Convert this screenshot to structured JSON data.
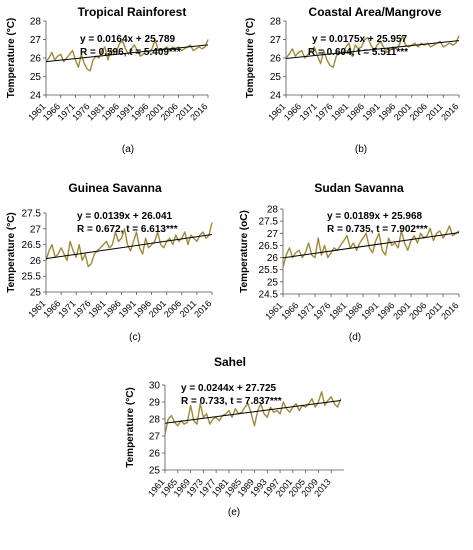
{
  "chart_data": [
    {
      "type": "line",
      "title": "Tropical Rainforest",
      "ylabel": "Temperature (°C)",
      "xlabel": "",
      "panel_label": "(a)",
      "equation": "y = 0.0164x + 25.789",
      "stats": "R = 0.596, t = 5.409***",
      "ylim": [
        24,
        28
      ],
      "yticks": [
        "24",
        "25",
        "26",
        "27",
        "28"
      ],
      "xlim": [
        1961,
        2016
      ],
      "xticks": [
        "1961",
        "1966",
        "1971",
        "1976",
        "1981",
        "1986",
        "1991",
        "1996",
        "2001",
        "2006",
        "2011",
        "2016"
      ],
      "trend": {
        "slope": 0.0164,
        "intercept": 25.789
      },
      "grid": false,
      "series": [
        {
          "color": "#a08a3a",
          "x": [
            1961,
            1962,
            1963,
            1964,
            1965,
            1966,
            1967,
            1968,
            1969,
            1970,
            1971,
            1972,
            1973,
            1974,
            1975,
            1976,
            1977,
            1978,
            1979,
            1980,
            1981,
            1982,
            1983,
            1984,
            1985,
            1986,
            1987,
            1988,
            1989,
            1990,
            1991,
            1992,
            1993,
            1994,
            1995,
            1996,
            1997,
            1998,
            1999,
            2000,
            2001,
            2002,
            2003,
            2004,
            2005,
            2006,
            2007,
            2008,
            2009,
            2010,
            2011,
            2012,
            2013,
            2014,
            2015,
            2016
          ],
          "values": [
            25.8,
            26.0,
            26.3,
            25.9,
            26.1,
            26.2,
            25.8,
            26.0,
            26.2,
            26.4,
            25.9,
            25.5,
            26.2,
            25.7,
            25.4,
            25.3,
            25.9,
            26.1,
            26.0,
            26.4,
            26.6,
            25.9,
            26.5,
            26.3,
            26.4,
            26.8,
            26.9,
            26.5,
            26.2,
            26.5,
            26.7,
            26.4,
            26.1,
            26.2,
            26.4,
            26.3,
            26.5,
            27.0,
            26.5,
            26.4,
            26.5,
            26.6,
            26.4,
            26.6,
            26.5,
            26.6,
            26.4,
            26.5,
            26.6,
            26.7,
            26.4,
            26.5,
            26.6,
            26.5,
            26.6,
            27.0
          ]
        }
      ]
    },
    {
      "type": "line",
      "title": "Coastal Area/Mangrove",
      "ylabel": "Temperature (°C)",
      "xlabel": "",
      "panel_label": "(b)",
      "equation": "y = 0.0175x + 25.957",
      "stats": "R = 0.604, t = 5.511***",
      "ylim": [
        24,
        28
      ],
      "yticks": [
        "24",
        "25",
        "26",
        "27",
        "28"
      ],
      "xlim": [
        1961,
        2016
      ],
      "xticks": [
        "1961",
        "1966",
        "1971",
        "1976",
        "1981",
        "1986",
        "1991",
        "1996",
        "2001",
        "2006",
        "2011",
        "2016"
      ],
      "trend": {
        "slope": 0.0175,
        "intercept": 25.957
      },
      "grid": false,
      "series": [
        {
          "color": "#a08a3a",
          "x": [
            1961,
            1962,
            1963,
            1964,
            1965,
            1966,
            1967,
            1968,
            1969,
            1970,
            1971,
            1972,
            1973,
            1974,
            1975,
            1976,
            1977,
            1978,
            1979,
            1980,
            1981,
            1982,
            1983,
            1984,
            1985,
            1986,
            1987,
            1988,
            1989,
            1990,
            1991,
            1992,
            1993,
            1994,
            1995,
            1996,
            1997,
            1998,
            1999,
            2000,
            2001,
            2002,
            2003,
            2004,
            2005,
            2006,
            2007,
            2008,
            2009,
            2010,
            2011,
            2012,
            2013,
            2014,
            2015,
            2016
          ],
          "values": [
            26.0,
            26.2,
            26.5,
            26.1,
            26.3,
            26.4,
            26.0,
            26.2,
            26.4,
            26.6,
            26.1,
            25.7,
            26.4,
            25.9,
            25.6,
            25.5,
            26.1,
            26.3,
            26.2,
            26.6,
            26.8,
            26.1,
            26.7,
            26.5,
            26.6,
            27.0,
            27.1,
            26.7,
            26.4,
            26.7,
            26.9,
            26.6,
            26.3,
            26.4,
            26.6,
            26.5,
            26.7,
            27.2,
            26.7,
            26.6,
            26.7,
            26.8,
            26.6,
            26.8,
            26.7,
            26.8,
            26.6,
            26.7,
            26.8,
            26.9,
            26.6,
            26.7,
            26.8,
            26.7,
            26.8,
            27.2
          ]
        }
      ]
    },
    {
      "type": "line",
      "title": "Guinea Savanna",
      "ylabel": "Temperature (°C)",
      "xlabel": "",
      "panel_label": "(c)",
      "equation": "y = 0.0139x + 26.041",
      "stats": "R = 0.672, t = 6.613***",
      "ylim": [
        25,
        27.5
      ],
      "yticks": [
        "25",
        "25.5",
        "26",
        "26.5",
        "27",
        "27.5"
      ],
      "xlim": [
        1961,
        2016
      ],
      "xticks": [
        "1961",
        "1966",
        "1971",
        "1976",
        "1981",
        "1986",
        "1991",
        "1996",
        "2001",
        "2006",
        "2011",
        "2016"
      ],
      "trend": {
        "slope": 0.0139,
        "intercept": 26.041
      },
      "grid": false,
      "series": [
        {
          "color": "#a08a3a",
          "x": [
            1961,
            1962,
            1963,
            1964,
            1965,
            1966,
            1967,
            1968,
            1969,
            1970,
            1971,
            1972,
            1973,
            1974,
            1975,
            1976,
            1977,
            1978,
            1979,
            1980,
            1981,
            1982,
            1983,
            1984,
            1985,
            1986,
            1987,
            1988,
            1989,
            1990,
            1991,
            1992,
            1993,
            1994,
            1995,
            1996,
            1997,
            1998,
            1999,
            2000,
            2001,
            2002,
            2003,
            2004,
            2005,
            2006,
            2007,
            2008,
            2009,
            2010,
            2011,
            2012,
            2013,
            2014,
            2015,
            2016
          ],
          "values": [
            26.0,
            26.3,
            26.5,
            26.1,
            26.2,
            26.4,
            26.2,
            26.0,
            26.6,
            26.3,
            26.1,
            26.5,
            26.0,
            26.2,
            25.8,
            25.9,
            26.2,
            26.3,
            26.4,
            26.5,
            26.6,
            26.4,
            26.5,
            26.9,
            26.6,
            26.7,
            27.0,
            26.5,
            26.3,
            26.6,
            26.9,
            26.4,
            26.2,
            26.7,
            26.4,
            26.5,
            26.6,
            26.9,
            26.5,
            26.4,
            26.6,
            26.7,
            26.5,
            26.8,
            26.6,
            26.7,
            26.9,
            26.5,
            26.8,
            26.7,
            26.6,
            26.8,
            26.9,
            26.7,
            26.8,
            27.2
          ]
        }
      ]
    },
    {
      "type": "line",
      "title": "Sudan Savanna",
      "ylabel": "Temperature (oC)",
      "xlabel": "",
      "panel_label": "(d)",
      "equation": "y = 0.0189x + 25.968",
      "stats": "R = 0.735, t = 7.902***",
      "ylim": [
        24.5,
        28
      ],
      "yticks": [
        "24.5",
        "25",
        "25.5",
        "26",
        "26.5",
        "27",
        "27.5",
        "28"
      ],
      "xlim": [
        1961,
        2016
      ],
      "xticks": [
        "1961",
        "1966",
        "1971",
        "1976",
        "1981",
        "1986",
        "1991",
        "1996",
        "2001",
        "2006",
        "2011",
        "2016"
      ],
      "trend": {
        "slope": 0.0189,
        "intercept": 25.968
      },
      "grid": false,
      "series": [
        {
          "color": "#a08a3a",
          "x": [
            1961,
            1962,
            1963,
            1964,
            1965,
            1966,
            1967,
            1968,
            1969,
            1970,
            1971,
            1972,
            1973,
            1974,
            1975,
            1976,
            1977,
            1978,
            1979,
            1980,
            1981,
            1982,
            1983,
            1984,
            1985,
            1986,
            1987,
            1988,
            1989,
            1990,
            1991,
            1992,
            1993,
            1994,
            1995,
            1996,
            1997,
            1998,
            1999,
            2000,
            2001,
            2002,
            2003,
            2004,
            2005,
            2006,
            2007,
            2008,
            2009,
            2010,
            2011,
            2012,
            2013,
            2014,
            2015,
            2016
          ],
          "values": [
            25.6,
            26.1,
            26.4,
            26.0,
            26.2,
            26.3,
            26.0,
            26.2,
            26.6,
            26.1,
            26.0,
            26.8,
            26.1,
            26.5,
            26.0,
            26.2,
            26.4,
            26.3,
            26.5,
            26.7,
            26.9,
            26.4,
            26.6,
            26.3,
            26.6,
            26.8,
            27.0,
            26.4,
            26.2,
            26.7,
            27.0,
            26.3,
            26.1,
            26.8,
            26.5,
            26.6,
            26.4,
            27.1,
            26.6,
            26.3,
            26.7,
            26.9,
            26.6,
            27.0,
            26.8,
            26.9,
            27.2,
            26.7,
            27.0,
            27.1,
            26.8,
            27.0,
            27.3,
            26.9,
            27.0,
            27.1
          ]
        }
      ]
    },
    {
      "type": "line",
      "title": "Sahel",
      "ylabel": "Temperature (°C)",
      "xlabel": "",
      "panel_label": "(e)",
      "equation": "y = 0.0244x + 27.725",
      "stats": "R = 0.733, t = 7.837***",
      "ylim": [
        25,
        30
      ],
      "yticks": [
        "25",
        "26",
        "27",
        "28",
        "29",
        "30"
      ],
      "xlim": [
        1961,
        2017
      ],
      "xticks": [
        "1961",
        "1965",
        "1969",
        "1973",
        "1977",
        "1981",
        "1985",
        "1989",
        "1993",
        "1997",
        "2001",
        "2005",
        "2009",
        "2013"
      ],
      "trend": {
        "slope": 0.0244,
        "intercept": 27.725
      },
      "grid": false,
      "series": [
        {
          "color": "#a08a3a",
          "x": [
            1961,
            1962,
            1963,
            1964,
            1965,
            1966,
            1967,
            1968,
            1969,
            1970,
            1971,
            1972,
            1973,
            1974,
            1975,
            1976,
            1977,
            1978,
            1979,
            1980,
            1981,
            1982,
            1983,
            1984,
            1985,
            1986,
            1987,
            1988,
            1989,
            1990,
            1991,
            1992,
            1993,
            1994,
            1995,
            1996,
            1997,
            1998,
            1999,
            2000,
            2001,
            2002,
            2003,
            2004,
            2005,
            2006,
            2007,
            2008,
            2009,
            2010,
            2011,
            2012,
            2013,
            2014,
            2015,
            2016
          ],
          "values": [
            27.1,
            28.0,
            28.2,
            27.8,
            27.6,
            27.9,
            27.7,
            27.8,
            28.8,
            27.9,
            27.7,
            28.9,
            28.1,
            28.3,
            27.7,
            28.0,
            28.1,
            27.9,
            28.2,
            28.3,
            28.5,
            28.1,
            28.6,
            28.3,
            28.4,
            28.7,
            28.9,
            28.3,
            27.6,
            28.5,
            28.9,
            28.3,
            28.1,
            28.7,
            28.4,
            28.5,
            28.3,
            29.0,
            28.6,
            28.4,
            28.7,
            28.9,
            28.5,
            28.8,
            28.7,
            28.9,
            29.2,
            28.7,
            29.0,
            29.6,
            28.8,
            29.1,
            29.3,
            28.9,
            28.7,
            29.2
          ]
        }
      ]
    }
  ]
}
